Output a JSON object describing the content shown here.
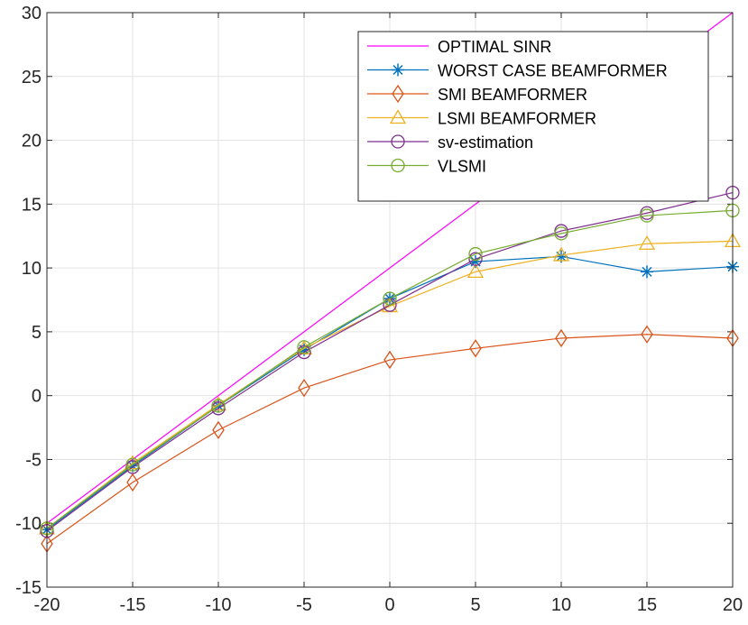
{
  "chart_data": {
    "type": "line",
    "title": "",
    "xlabel": "",
    "ylabel": "",
    "xlim": [
      -20,
      20
    ],
    "ylim": [
      -15,
      30
    ],
    "xticks": [
      -20,
      -15,
      -10,
      -5,
      0,
      5,
      10,
      15,
      20
    ],
    "yticks": [
      -15,
      -10,
      -5,
      0,
      5,
      10,
      15,
      20,
      25,
      30
    ],
    "xtick_labels": [
      "-20",
      "-15",
      "-10",
      "-5",
      "0",
      "5",
      "10",
      "15",
      "20"
    ],
    "ytick_labels": [
      "-15",
      "-10",
      "-5",
      "0",
      "5",
      "10",
      "15",
      "20",
      "25",
      "30"
    ],
    "grid": true,
    "legend_position": "top-right",
    "x": [
      -20,
      -15,
      -10,
      -5,
      0,
      5,
      10,
      15,
      20
    ],
    "series": [
      {
        "name": "OPTIMAL SINR",
        "marker": "none",
        "color": "#ff00ff",
        "x": [
          -20,
          20
        ],
        "values": [
          -10,
          30
        ]
      },
      {
        "name": "WORST CASE BEAMFORMER",
        "marker": "asterisk",
        "color": "#0072bd",
        "values": [
          -10.5,
          -5.5,
          -0.8,
          3.6,
          7.6,
          10.5,
          10.9,
          9.7,
          10.1
        ]
      },
      {
        "name": "SMI BEAMFORMER",
        "marker": "diamond",
        "color": "#d95319",
        "values": [
          -11.6,
          -6.8,
          -2.7,
          0.6,
          2.8,
          3.7,
          4.5,
          4.8,
          4.5
        ]
      },
      {
        "name": "LSMI BEAMFORMER",
        "marker": "triangle",
        "color": "#edb120",
        "values": [
          -10.4,
          -5.3,
          -0.7,
          3.7,
          7.0,
          9.7,
          11.0,
          11.9,
          12.1
        ]
      },
      {
        "name": "sv-estimation",
        "marker": "circle",
        "color": "#7e2f8e",
        "values": [
          -10.6,
          -5.6,
          -1.0,
          3.4,
          7.1,
          10.7,
          12.9,
          14.3,
          15.9
        ]
      },
      {
        "name": "VLSMI",
        "marker": "circle",
        "color": "#77ac30",
        "values": [
          -10.4,
          -5.4,
          -0.8,
          3.8,
          7.6,
          11.1,
          12.7,
          14.1,
          14.5
        ]
      }
    ]
  }
}
